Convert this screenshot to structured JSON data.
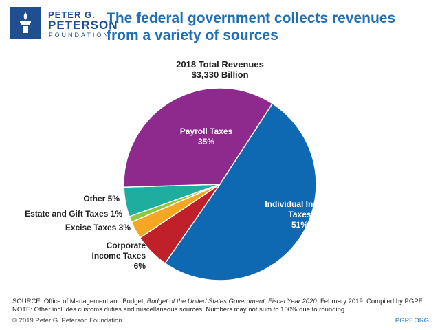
{
  "header": {
    "logo_line1": "PETER G.",
    "logo_line2": "PETERSON",
    "logo_line3": "FOUNDATION",
    "title": "The federal government collects revenues from a variety of sources"
  },
  "chart_data": {
    "type": "pie",
    "title": "2018 Total Revenues",
    "subtitle": "$3,330 Billion",
    "slices": [
      {
        "label": "Individual Income Taxes",
        "label_lines": [
          "Individual Income",
          "Taxes"
        ],
        "percent_text": "51%",
        "value": 51,
        "color": "#0f68b2"
      },
      {
        "label": "Corporate Income Taxes",
        "label_lines": [
          "Corporate",
          "Income Taxes"
        ],
        "percent_text": "6%",
        "value": 6,
        "color": "#c0202a"
      },
      {
        "label": "Excise Taxes",
        "label_lines": [
          "Excise Taxes 3%"
        ],
        "percent_text": "3%",
        "value": 3,
        "color": "#f5a623"
      },
      {
        "label": "Estate and Gift Taxes",
        "label_lines": [
          "Estate and Gift Taxes 1%"
        ],
        "percent_text": "1%",
        "value": 1,
        "color": "#8fc73e"
      },
      {
        "label": "Other",
        "label_lines": [
          "Other 5%"
        ],
        "percent_text": "5%",
        "value": 5,
        "color": "#1fad9f"
      },
      {
        "label": "Payroll Taxes",
        "label_lines": [
          "Payroll Taxes"
        ],
        "percent_text": "35%",
        "value": 35,
        "color": "#8e2a8e"
      }
    ]
  },
  "footer": {
    "source_prefix": "SOURCE: Office of Management and Budget, ",
    "source_italic_1": "Budget of the United States Government, Fiscal Year 2020",
    "source_suffix": ", February 2019. Compiled by PGPF.",
    "note": "NOTE: Other includes customs duties and miscellaneous sources. Numbers may not sum to 100% due to rounding.",
    "copyright": "© 2019 Peter G. Peterson Foundation",
    "url": "PGPF.ORG"
  }
}
